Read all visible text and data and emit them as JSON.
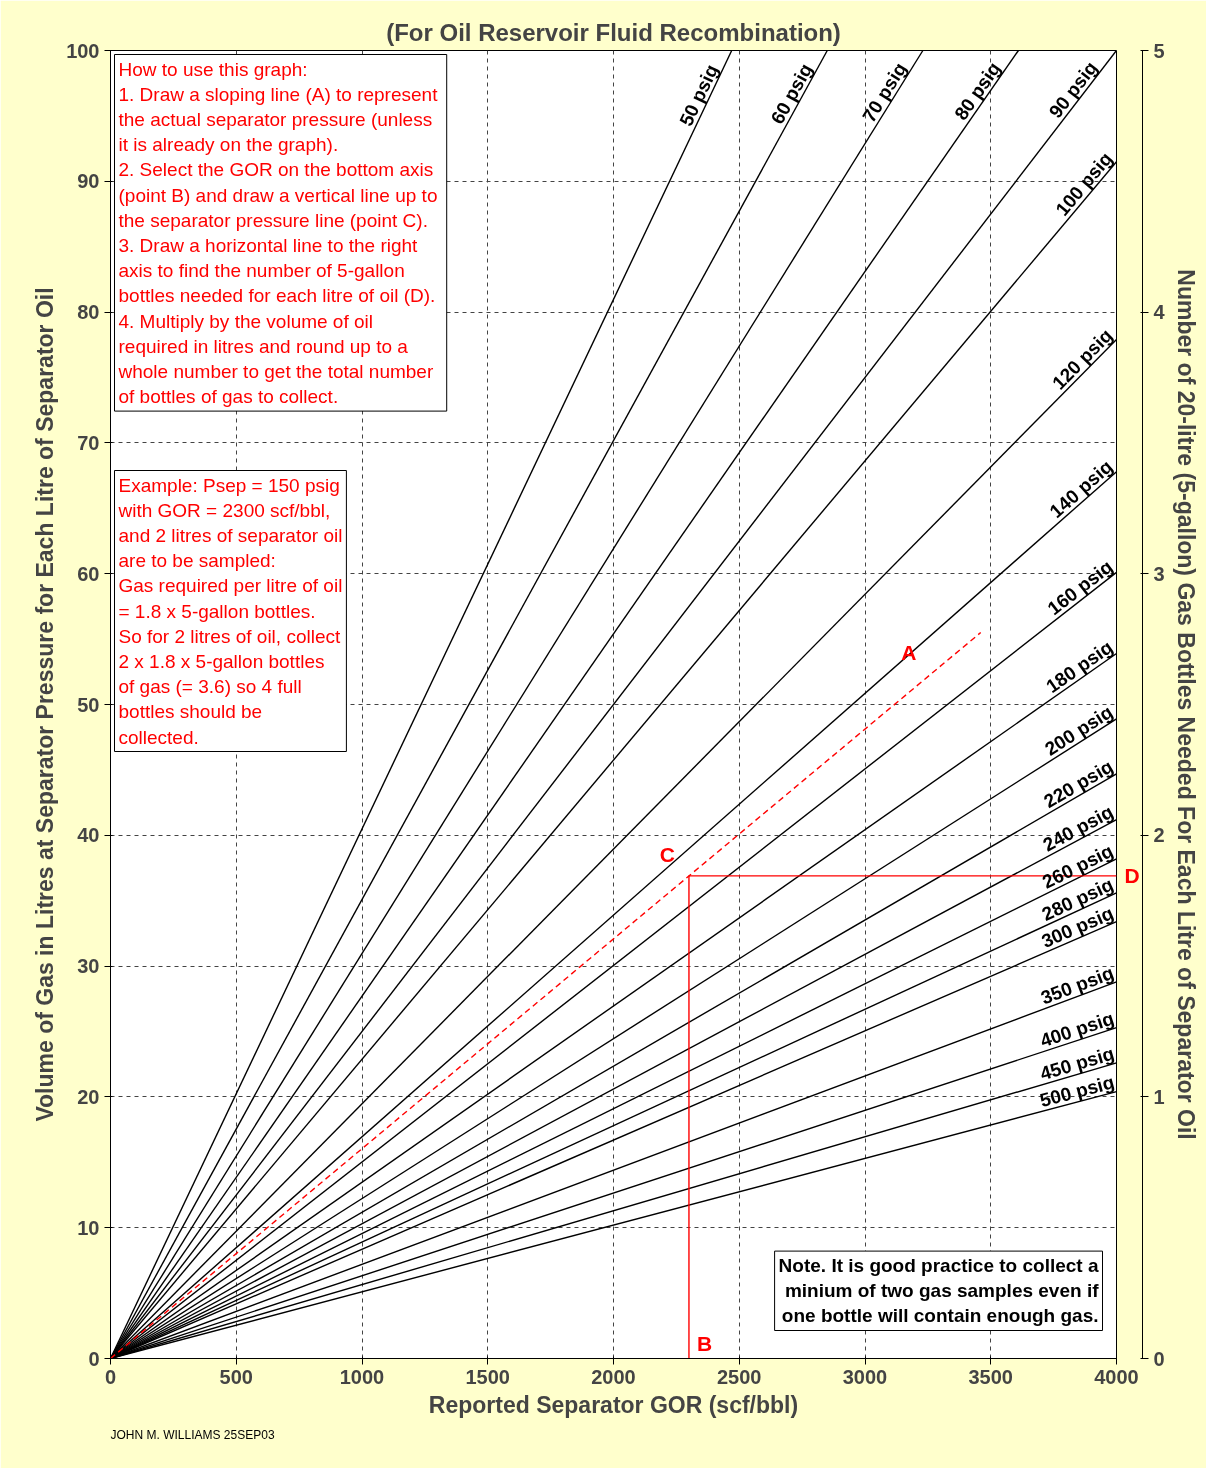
{
  "chart_data": {
    "type": "line",
    "title": "(For Oil Reservoir Fluid Recombination)",
    "xlabel": "Reported Separator GOR (scf/bbl)",
    "ylabel": "Volume of Gas in Litres at Separator Pressure for Each Litre of Separator Oil",
    "y2label": "Number of 20-litre (5-gallon) Gas Bottles Needed For Each Litre of Separator Oil",
    "xlim": [
      0,
      4000
    ],
    "xticks": [
      0,
      500,
      1000,
      1500,
      2000,
      2500,
      3000,
      3500,
      4000
    ],
    "ylim": [
      0,
      100
    ],
    "yticks": [
      0,
      10,
      20,
      30,
      40,
      50,
      60,
      70,
      80,
      90,
      100
    ],
    "y2lim": [
      0,
      5
    ],
    "y2ticks": [
      0,
      1,
      2,
      3,
      4,
      5
    ],
    "grid": true,
    "line_style": "solid",
    "marker": "none",
    "series": [
      {
        "name": "50 psig",
        "color": "#000000",
        "x": [
          0,
          2470
        ],
        "values": [
          0,
          100
        ]
      },
      {
        "name": "60 psig",
        "color": "#000000",
        "x": [
          0,
          2850
        ],
        "values": [
          0,
          100
        ]
      },
      {
        "name": "70 psig",
        "color": "#000000",
        "x": [
          0,
          3230
        ],
        "values": [
          0,
          100
        ]
      },
      {
        "name": "80 psig",
        "color": "#000000",
        "x": [
          0,
          3610
        ],
        "values": [
          0,
          100
        ]
      },
      {
        "name": "90 psig",
        "color": "#000000",
        "x": [
          0,
          4000
        ],
        "values": [
          0,
          100
        ]
      },
      {
        "name": "100 psig",
        "color": "#000000",
        "x": [
          0,
          4000
        ],
        "values": [
          0,
          91.5
        ]
      },
      {
        "name": "120 psig",
        "color": "#000000",
        "x": [
          0,
          4000
        ],
        "values": [
          0,
          77.9
        ]
      },
      {
        "name": "140 psig",
        "color": "#000000",
        "x": [
          0,
          4000
        ],
        "values": [
          0,
          67.8
        ]
      },
      {
        "name": "160 psig",
        "color": "#000000",
        "x": [
          0,
          4000
        ],
        "values": [
          0,
          60.1
        ]
      },
      {
        "name": "180 psig",
        "color": "#000000",
        "x": [
          0,
          4000
        ],
        "values": [
          0,
          53.9
        ]
      },
      {
        "name": "200 psig",
        "color": "#000000",
        "x": [
          0,
          4000
        ],
        "values": [
          0,
          48.9
        ]
      },
      {
        "name": "220 psig",
        "color": "#000000",
        "x": [
          0,
          4000
        ],
        "values": [
          0,
          44.7
        ]
      },
      {
        "name": "240 psig",
        "color": "#000000",
        "x": [
          0,
          4000
        ],
        "values": [
          0,
          41.2
        ]
      },
      {
        "name": "260 psig",
        "color": "#000000",
        "x": [
          0,
          4000
        ],
        "values": [
          0,
          38.2
        ]
      },
      {
        "name": "280 psig",
        "color": "#000000",
        "x": [
          0,
          4000
        ],
        "values": [
          0,
          35.6
        ]
      },
      {
        "name": "300 psig",
        "color": "#000000",
        "x": [
          0,
          4000
        ],
        "values": [
          0,
          33.4
        ]
      },
      {
        "name": "350 psig",
        "color": "#000000",
        "x": [
          0,
          4000
        ],
        "values": [
          0,
          28.8
        ]
      },
      {
        "name": "400 psig",
        "color": "#000000",
        "x": [
          0,
          4000
        ],
        "values": [
          0,
          25.3
        ]
      },
      {
        "name": "450 psig",
        "color": "#000000",
        "x": [
          0,
          4000
        ],
        "values": [
          0,
          22.6
        ]
      },
      {
        "name": "500 psig",
        "color": "#000000",
        "x": [
          0,
          4000
        ],
        "values": [
          0,
          20.4
        ]
      },
      {
        "color": "#ff0000",
        "line_style": "dashed",
        "x": [
          0,
          3460
        ],
        "values": [
          0,
          55.5
        ]
      },
      {
        "color": "#ff0000",
        "x": [
          2300,
          2300,
          4000
        ],
        "values": [
          0,
          36.9,
          36.9
        ]
      }
    ],
    "annotations": [
      "How to use this graph:\n1.  Draw a sloping line (A) to represent\nthe actual separator pressure  (unless\nit is already on the graph).\n2. Select the GOR on the bottom axis\n(point B) and draw a vertical line up to\nthe separator pressure line (point C).\n3. Draw a horizontal line to the right\naxis to find the number of 5-gallon\nbottles needed for each litre of oil (D).\n4. Multiply by the volume of oil\nrequired in litres and round up to a\nwhole number to get the total number\nof bottles of gas to collect.",
      "Example: Psep = 150 psig\nwith GOR = 2300 scf/bbl,\nand 2 litres of separator oil\nare to be sampled:\nGas required per litre of oil\n= 1.8 x 5-gallon bottles.\nSo for 2 litres of oil, collect\n2 x 1.8 x 5-gallon bottles\nof gas (= 3.6) so 4 full\nbottles should be\ncollected.",
      "Note. It is good practice to collect a\nminium of two gas samples even if\none bottle will contain enough gas.",
      "JOHN M. WILLIAMS    25SEP03",
      {
        "text": "A",
        "x": 3260,
        "y": 52.3
      },
      {
        "text": "B",
        "x": 2300,
        "y": 0
      },
      {
        "text": "C",
        "x": 2300,
        "y": 36.9
      },
      {
        "text": "D",
        "x": 4000,
        "y": 36.9
      }
    ]
  }
}
